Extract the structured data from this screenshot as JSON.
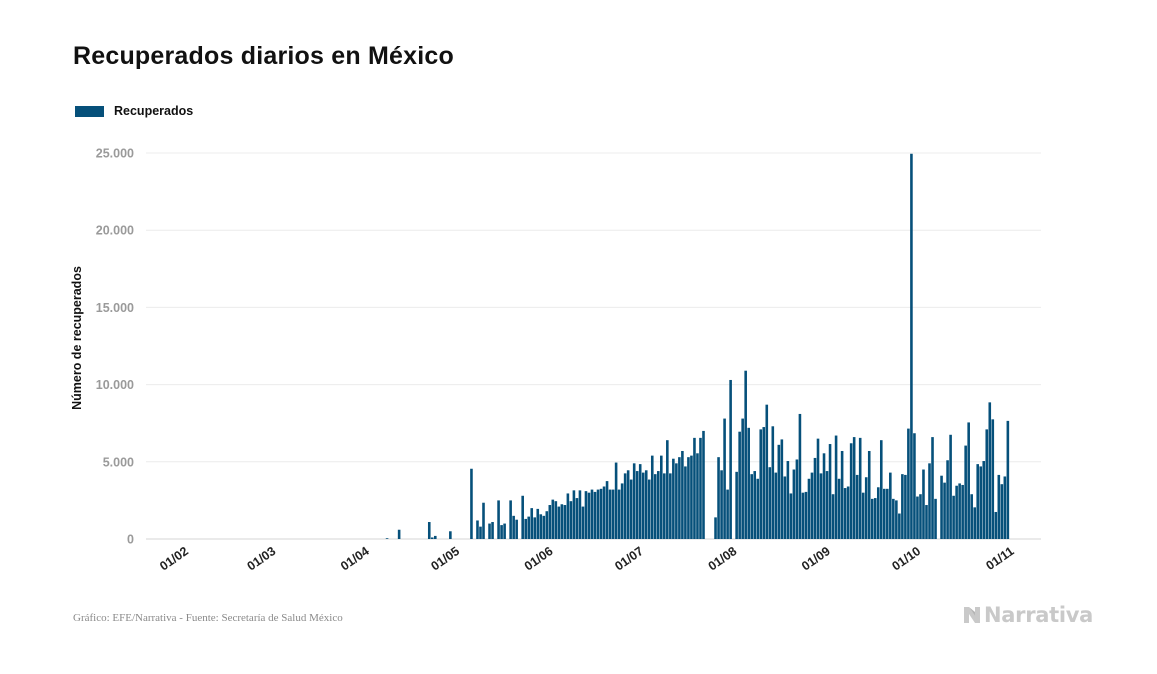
{
  "title": "Recuperados diarios en México",
  "legend": {
    "label": "Recuperados",
    "color": "#06507a"
  },
  "source": "Gráfico: EFE/Narrativa - Fuente: Secretaría de Salud México",
  "brand": {
    "name": "Narrativa",
    "icon": "narrativa-logo-icon"
  },
  "chart_data": {
    "type": "bar",
    "ylabel": "Número de recuperados",
    "ylim": [
      0,
      25000
    ],
    "ytick_values": [
      0,
      5000,
      10000,
      15000,
      20000,
      25000
    ],
    "ytick_labels": [
      "0",
      "5.000",
      "10.000",
      "15.000",
      "20.000",
      "25.000"
    ],
    "grid": true,
    "legend_position": "top-left",
    "xdomain": [
      "2020-01-20",
      "2020-11-12"
    ],
    "xticks": [
      {
        "date": "2020-02-01",
        "label": "01/02"
      },
      {
        "date": "2020-03-01",
        "label": "01/03"
      },
      {
        "date": "2020-04-01",
        "label": "01/04"
      },
      {
        "date": "2020-05-01",
        "label": "01/05"
      },
      {
        "date": "2020-06-01",
        "label": "01/06"
      },
      {
        "date": "2020-07-01",
        "label": "01/07"
      },
      {
        "date": "2020-08-01",
        "label": "01/08"
      },
      {
        "date": "2020-09-01",
        "label": "01/09"
      },
      {
        "date": "2020-10-01",
        "label": "01/10"
      },
      {
        "date": "2020-11-01",
        "label": "01/11"
      }
    ],
    "series": [
      {
        "name": "Recuperados",
        "color": "#06507a",
        "start_date": "2020-01-21",
        "values": [
          0,
          0,
          0,
          0,
          0,
          0,
          0,
          0,
          0,
          0,
          0,
          0,
          0,
          0,
          0,
          0,
          0,
          0,
          0,
          0,
          0,
          0,
          0,
          0,
          0,
          0,
          0,
          0,
          0,
          0,
          0,
          0,
          0,
          0,
          0,
          0,
          0,
          0,
          0,
          0,
          0,
          0,
          0,
          0,
          0,
          0,
          0,
          0,
          0,
          0,
          0,
          0,
          0,
          0,
          0,
          0,
          0,
          0,
          0,
          0,
          0,
          0,
          0,
          0,
          0,
          0,
          0,
          0,
          0,
          0,
          0,
          0,
          0,
          0,
          0,
          0,
          0,
          0,
          0,
          50,
          0,
          0,
          0,
          600,
          0,
          0,
          0,
          0,
          0,
          0,
          0,
          0,
          0,
          1100,
          100,
          200,
          0,
          0,
          0,
          0,
          500,
          0,
          0,
          0,
          0,
          0,
          0,
          4550,
          0,
          1200,
          800,
          2350,
          0,
          1000,
          1100,
          0,
          2500,
          900,
          1000,
          0,
          2500,
          1500,
          1250,
          0,
          2800,
          1300,
          1450,
          2000,
          1400,
          1950,
          1600,
          1500,
          1800,
          2200,
          2550,
          2450,
          2100,
          2250,
          2200,
          2950,
          2450,
          3150,
          2650,
          3150,
          2100,
          3100,
          3000,
          3200,
          3050,
          3200,
          3250,
          3400,
          3750,
          3200,
          3200,
          4950,
          3200,
          3600,
          4250,
          4450,
          3850,
          4900,
          4400,
          4850,
          4300,
          4450,
          3850,
          5400,
          4200,
          4400,
          5400,
          4250,
          6400,
          4250,
          5200,
          4900,
          5300,
          5700,
          4700,
          5300,
          5400,
          6550,
          5550,
          6550,
          7000,
          0,
          0,
          0,
          1400,
          5300,
          4450,
          7800,
          3200,
          10300,
          0,
          4350,
          6950,
          7800,
          10900,
          7200,
          4200,
          4400,
          3900,
          7100,
          7250,
          8700,
          4650,
          7300,
          4300,
          6100,
          6450,
          4050,
          5050,
          2950,
          4500,
          5150,
          8100,
          3000,
          3050,
          3900,
          4300,
          5250,
          6500,
          4250,
          5550,
          4400,
          6150,
          2900,
          6700,
          3900,
          5700,
          3300,
          3400,
          6200,
          6600,
          4150,
          6550,
          3000,
          4000,
          5700,
          2600,
          2650,
          3350,
          6400,
          3250,
          3250,
          4300,
          2600,
          2500,
          1650,
          4200,
          4150,
          7150,
          24950,
          6850,
          2750,
          2900,
          4500,
          2200,
          4900,
          6600,
          2600,
          0,
          4100,
          3650,
          5100,
          6750,
          2800,
          3450,
          3600,
          3500,
          6050,
          7550,
          2900,
          2050,
          4850,
          4700,
          5050,
          7100,
          8850,
          7750,
          1750,
          4150,
          3550,
          4050,
          7650
        ]
      }
    ]
  }
}
